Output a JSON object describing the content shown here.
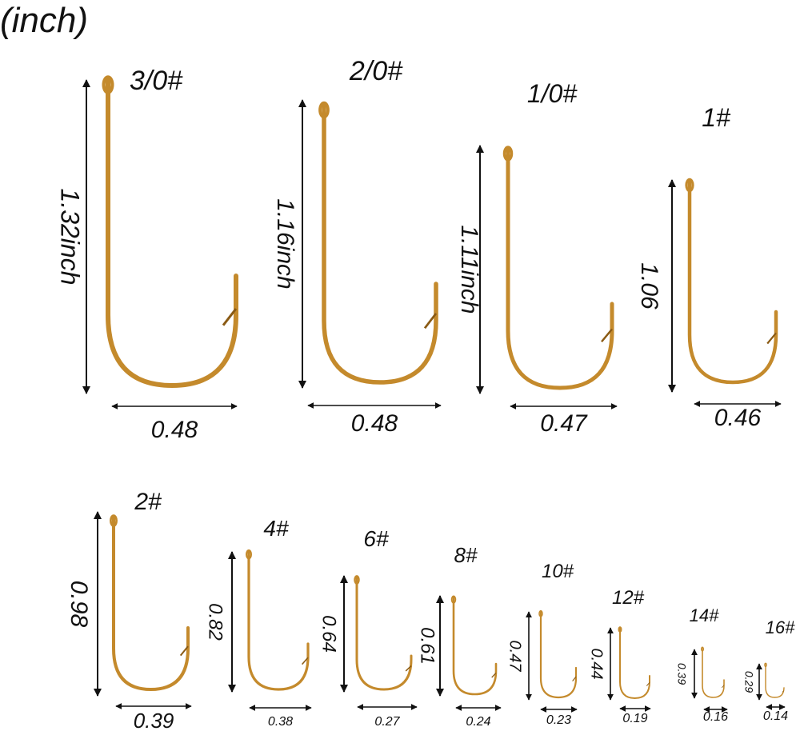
{
  "unit_label": "(inch)",
  "colors": {
    "hook": "#c48a2c",
    "hook_dark": "#8a5a14",
    "arrow": "#111111"
  },
  "hooks": [
    {
      "size": "3/0#",
      "length": "1.32inch",
      "gap": "0.48"
    },
    {
      "size": "2/0#",
      "length": "1.16inch",
      "gap": "0.48"
    },
    {
      "size": "1/0#",
      "length": "1.11inch",
      "gap": "0.47"
    },
    {
      "size": "1#",
      "length": "1.06",
      "gap": "0.46"
    },
    {
      "size": "2#",
      "length": "0.98",
      "gap": "0.39"
    },
    {
      "size": "4#",
      "length": "0.82",
      "gap": "0.38"
    },
    {
      "size": "6#",
      "length": "0.64",
      "gap": "0.27"
    },
    {
      "size": "8#",
      "length": "0.61",
      "gap": "0.24"
    },
    {
      "size": "10#",
      "length": "0.47",
      "gap": "0.23"
    },
    {
      "size": "12#",
      "length": "0.44",
      "gap": "0.19"
    },
    {
      "size": "14#",
      "length": "0.39",
      "gap": "0.16"
    },
    {
      "size": "16#",
      "length": "0.29",
      "gap": "0.14"
    }
  ]
}
